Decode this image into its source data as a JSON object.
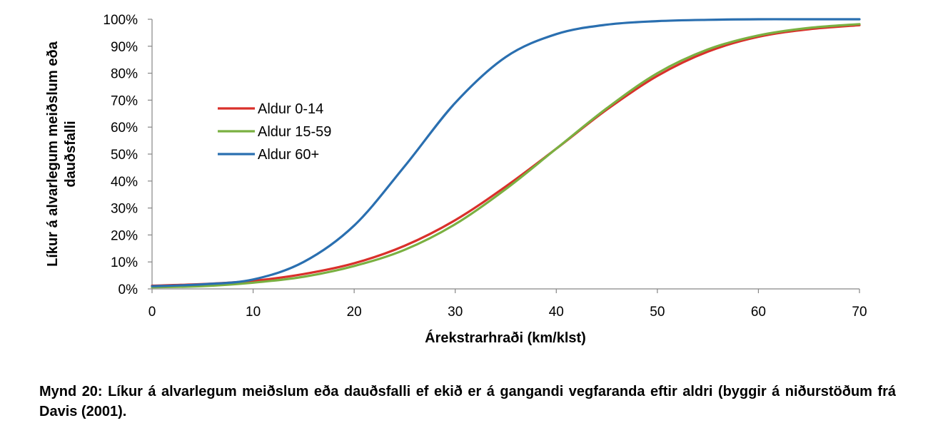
{
  "chart_data": {
    "type": "line",
    "xlabel": "Árekstrarhraði (km/klst)",
    "ylabel": "Líkur á alvarlegum meiðslum eða dauðsfalli",
    "xlim": [
      0,
      70
    ],
    "ylim": [
      0,
      100
    ],
    "x_ticks": [
      "0",
      "10",
      "20",
      "30",
      "40",
      "50",
      "60",
      "70"
    ],
    "y_ticks": [
      "0%",
      "10%",
      "20%",
      "30%",
      "40%",
      "50%",
      "60%",
      "70%",
      "80%",
      "90%",
      "100%"
    ],
    "grid": false,
    "legend_position": "upper-left",
    "series": [
      {
        "name": "Aldur 0-14",
        "color": "#d9302b",
        "x": [
          0,
          5,
          10,
          15,
          20,
          25,
          30,
          35,
          40,
          45,
          50,
          55,
          60,
          65,
          70
        ],
        "y": [
          1.2,
          1.8,
          3.0,
          5.5,
          9.5,
          16.0,
          25.5,
          38.0,
          52.0,
          66.5,
          79.0,
          88.0,
          93.5,
          96.3,
          97.8
        ]
      },
      {
        "name": "Aldur 15-59",
        "color": "#7ab041",
        "x": [
          0,
          5,
          10,
          15,
          20,
          25,
          30,
          35,
          40,
          45,
          50,
          55,
          60,
          65,
          70
        ],
        "y": [
          0.6,
          1.0,
          2.3,
          4.5,
          8.5,
          14.5,
          24.0,
          37.0,
          52.0,
          67.0,
          80.0,
          88.8,
          94.0,
          96.8,
          98.2
        ]
      },
      {
        "name": "Aldur 60+",
        "color": "#2a6fb0",
        "x": [
          0,
          5,
          10,
          15,
          20,
          25,
          30,
          35,
          40,
          45,
          50,
          55,
          60,
          65,
          70
        ],
        "y": [
          1.0,
          1.7,
          3.5,
          10.0,
          23.5,
          45.5,
          69.0,
          86.0,
          94.5,
          98.0,
          99.3,
          99.8,
          100.0,
          100.0,
          100.0
        ]
      }
    ]
  },
  "caption": "Mynd 20: Líkur á alvarlegum meiðslum eða dauðsfalli ef ekið er á gangandi vegfaranda eftir aldri (byggir á niðurstöðum frá Davis (2001)."
}
